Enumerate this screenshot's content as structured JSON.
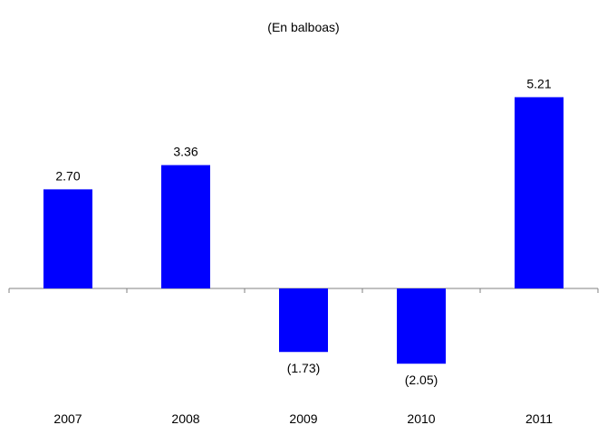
{
  "chart_data": {
    "type": "bar",
    "title": "",
    "subtitle": "(En balboas)",
    "xlabel": "",
    "ylabel": "",
    "categories": [
      "2007",
      "2008",
      "2009",
      "2010",
      "2011"
    ],
    "values": [
      2.7,
      3.36,
      -1.73,
      -2.05,
      5.21
    ],
    "value_labels": [
      "2.70",
      "3.36",
      "(1.73)",
      "(2.05)",
      "5.21"
    ],
    "ylim": [
      -2.05,
      5.21
    ],
    "grid": false,
    "legend": "none",
    "bar_color": "#0000FF",
    "axis_color": "#808080"
  }
}
